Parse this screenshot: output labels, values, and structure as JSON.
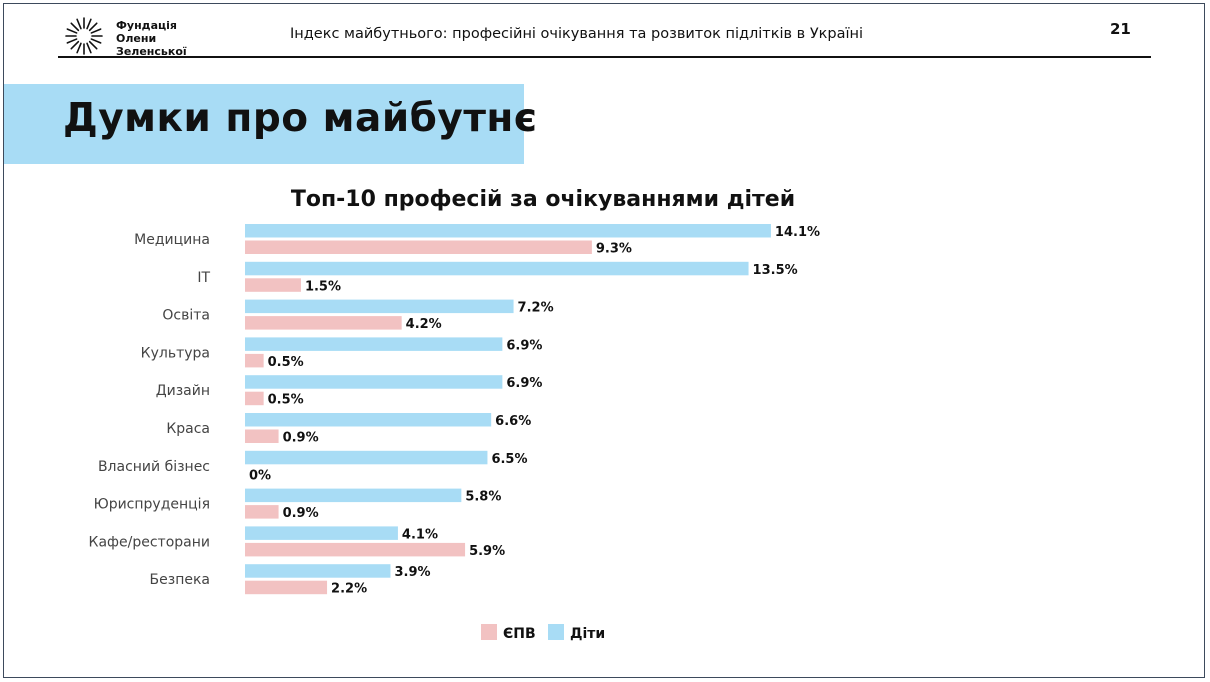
{
  "header": {
    "org_line1": "Фундація",
    "org_line2": "Олени Зеленської",
    "title": "Індекс майбутнього: професійні очікування та розвиток підлітків в Україні",
    "page_number": "21"
  },
  "section_title": "Думки про майбутнє",
  "colors": {
    "banner": "#a8dcf5",
    "children": "#a8dcf5",
    "epv": "#f2c2c2",
    "text": "#111111"
  },
  "chart_data": {
    "type": "bar",
    "orientation": "horizontal",
    "title": "Топ-10 професій за очікуваннями дітей",
    "categories": [
      "Медицина",
      "IT",
      "Освіта",
      "Культура",
      "Дизайн",
      "Краса",
      "Власний бізнес",
      "Юриспруденція",
      "Кафе/ресторани",
      "Безпека"
    ],
    "series": [
      {
        "name": "Діти",
        "values": [
          14.1,
          13.5,
          7.2,
          6.9,
          6.9,
          6.6,
          6.5,
          5.8,
          4.1,
          3.9
        ],
        "labels": [
          "14.1%",
          "13.5%",
          "7.2%",
          "6.9%",
          "6.9%",
          "6.6%",
          "6.5%",
          "5.8%",
          "4.1%",
          "3.9%"
        ]
      },
      {
        "name": "ЄПВ",
        "values": [
          9.3,
          1.5,
          4.2,
          0.5,
          0.5,
          0.9,
          0,
          0.9,
          5.9,
          2.2
        ],
        "labels": [
          "9.3%",
          "1.5%",
          "4.2%",
          "0.5%",
          "0.5%",
          "0.9%",
          "0%",
          "0.9%",
          "5.9%",
          "2.2%"
        ]
      }
    ],
    "legend": {
      "position": "bottom",
      "items": [
        "ЄПВ",
        "Діти"
      ]
    },
    "grid": false
  }
}
